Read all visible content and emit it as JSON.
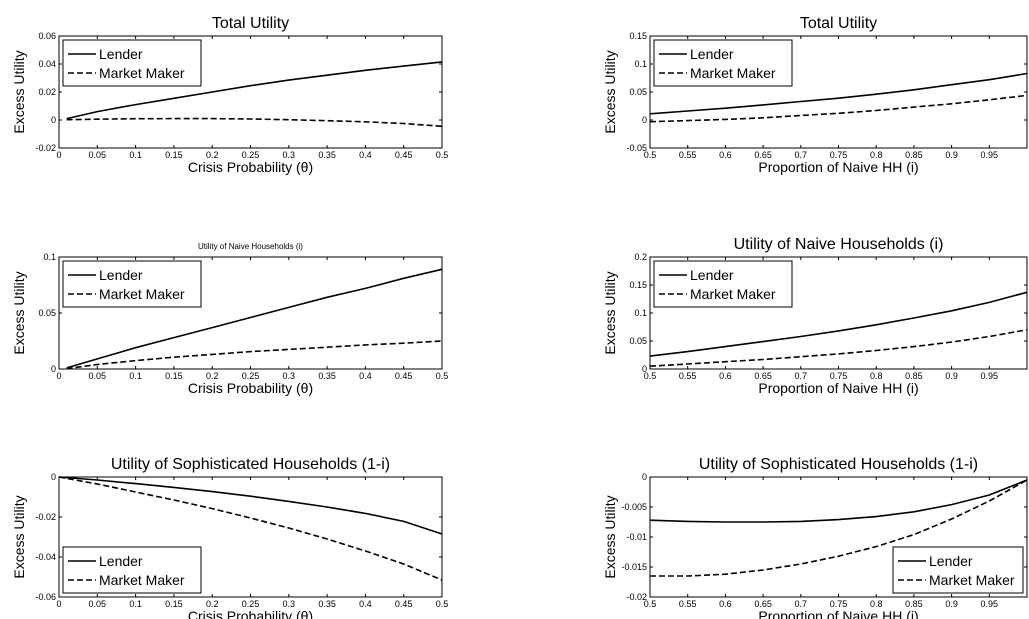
{
  "chart_data": [
    {
      "type": "line",
      "title": "Total Utility",
      "xlabel": "Crisis Probability (θ)",
      "ylabel": "Excess Utility",
      "xlim": [
        0,
        0.5
      ],
      "ylim": [
        -0.02,
        0.06
      ],
      "xticks": [
        "0",
        "0.05",
        "0.1",
        "0.15",
        "0.2",
        "0.25",
        "0.3",
        "0.35",
        "0.4",
        "0.45",
        "0.5"
      ],
      "yticks": [
        "-0.02",
        "0",
        "0.02",
        "0.04",
        "0.06"
      ],
      "legend_position": "top-left",
      "grid": false,
      "series": [
        {
          "name": "Lender",
          "style": "solid",
          "x": [
            0.01,
            0.05,
            0.1,
            0.15,
            0.2,
            0.25,
            0.3,
            0.35,
            0.4,
            0.45,
            0.5
          ],
          "y": [
            0.001,
            0.006,
            0.011,
            0.0155,
            0.02,
            0.0245,
            0.0285,
            0.032,
            0.0355,
            0.0385,
            0.0415
          ]
        },
        {
          "name": "Market Maker",
          "style": "dashed",
          "x": [
            0.01,
            0.05,
            0.1,
            0.15,
            0.2,
            0.25,
            0.3,
            0.35,
            0.4,
            0.45,
            0.5
          ],
          "y": [
            0.0002,
            0.0006,
            0.0009,
            0.001,
            0.001,
            0.0007,
            0.0002,
            -0.0005,
            -0.0013,
            -0.0025,
            -0.0045
          ]
        }
      ]
    },
    {
      "type": "line",
      "title": "Total Utility",
      "xlabel": "Proportion of Naive HH (i)",
      "ylabel": "Excess Utility",
      "xlim": [
        0.5,
        1
      ],
      "ylim": [
        -0.05,
        0.15
      ],
      "xticks": [
        "0.5",
        "0.55",
        "0.6",
        "0.65",
        "0.7",
        "0.75",
        "0.8",
        "0.85",
        "0.9",
        "0.95"
      ],
      "yticks": [
        "-0.05",
        "0",
        "0.05",
        "0.1",
        "0.15"
      ],
      "legend_position": "top-left",
      "grid": false,
      "series": [
        {
          "name": "Lender",
          "style": "solid",
          "x": [
            0.5,
            0.55,
            0.6,
            0.65,
            0.7,
            0.75,
            0.8,
            0.85,
            0.9,
            0.95,
            1.0
          ],
          "y": [
            0.011,
            0.016,
            0.021,
            0.027,
            0.033,
            0.039,
            0.046,
            0.054,
            0.063,
            0.072,
            0.083
          ]
        },
        {
          "name": "Market Maker",
          "style": "dashed",
          "x": [
            0.5,
            0.55,
            0.6,
            0.65,
            0.7,
            0.75,
            0.8,
            0.85,
            0.9,
            0.95,
            1.0
          ],
          "y": [
            -0.003,
            -0.001,
            0.001,
            0.004,
            0.008,
            0.012,
            0.017,
            0.023,
            0.029,
            0.036,
            0.044
          ]
        }
      ]
    },
    {
      "type": "line",
      "title": "Utility of Naive Households (i)",
      "xlabel": "Crisis Probability (θ)",
      "ylabel": "Excess Utility",
      "xlim": [
        0,
        0.5
      ],
      "ylim": [
        0,
        0.1
      ],
      "xticks": [
        "0",
        "0.05",
        "0.1",
        "0.15",
        "0.2",
        "0.25",
        "0.3",
        "0.35",
        "0.4",
        "0.45",
        "0.5"
      ],
      "yticks": [
        "0",
        "0.05",
        "0.1"
      ],
      "legend_position": "top-left",
      "grid": false,
      "series": [
        {
          "name": "Lender",
          "style": "solid",
          "x": [
            0.01,
            0.05,
            0.1,
            0.15,
            0.2,
            0.25,
            0.3,
            0.35,
            0.4,
            0.45,
            0.5
          ],
          "y": [
            0.001,
            0.009,
            0.019,
            0.028,
            0.037,
            0.046,
            0.055,
            0.064,
            0.072,
            0.081,
            0.089
          ]
        },
        {
          "name": "Market Maker",
          "style": "dashed",
          "x": [
            0.01,
            0.05,
            0.1,
            0.15,
            0.2,
            0.25,
            0.3,
            0.35,
            0.4,
            0.45,
            0.5
          ],
          "y": [
            0.0003,
            0.004,
            0.0075,
            0.0105,
            0.013,
            0.0155,
            0.0175,
            0.0195,
            0.0215,
            0.023,
            0.025
          ]
        }
      ]
    },
    {
      "type": "line",
      "title": "Utility of Naive Households (i)",
      "xlabel": "Proportion of Naive HH (i)",
      "ylabel": "Excess Utility",
      "xlim": [
        0.5,
        1
      ],
      "ylim": [
        0,
        0.2
      ],
      "xticks": [
        "0.5",
        "0.55",
        "0.6",
        "0.65",
        "0.7",
        "0.75",
        "0.8",
        "0.85",
        "0.9",
        "0.95"
      ],
      "yticks": [
        "0",
        "0.05",
        "0.1",
        "0.15",
        "0.2"
      ],
      "legend_position": "top-left",
      "grid": false,
      "series": [
        {
          "name": "Lender",
          "style": "solid",
          "x": [
            0.5,
            0.55,
            0.6,
            0.65,
            0.7,
            0.75,
            0.8,
            0.85,
            0.9,
            0.95,
            1.0
          ],
          "y": [
            0.023,
            0.031,
            0.04,
            0.049,
            0.058,
            0.068,
            0.079,
            0.091,
            0.104,
            0.119,
            0.137
          ]
        },
        {
          "name": "Market Maker",
          "style": "dashed",
          "x": [
            0.5,
            0.55,
            0.6,
            0.65,
            0.7,
            0.75,
            0.8,
            0.85,
            0.9,
            0.95,
            1.0
          ],
          "y": [
            0.005,
            0.009,
            0.013,
            0.017,
            0.022,
            0.027,
            0.033,
            0.04,
            0.048,
            0.058,
            0.07
          ]
        }
      ]
    },
    {
      "type": "line",
      "title": "Utility of Sophisticated Households (1-i)",
      "xlabel": "Crisis Probability (θ)",
      "ylabel": "Excess Utility",
      "xlim": [
        0,
        0.5
      ],
      "ylim": [
        -0.06,
        0
      ],
      "xticks": [
        "0",
        "0.05",
        "0.1",
        "0.15",
        "0.2",
        "0.25",
        "0.3",
        "0.35",
        "0.4",
        "0.45",
        "0.5"
      ],
      "yticks": [
        "-0.06",
        "-0.04",
        "-0.02",
        "0"
      ],
      "legend_position": "bottom-left",
      "grid": false,
      "series": [
        {
          "name": "Lender",
          "style": "solid",
          "x": [
            0.0,
            0.05,
            0.1,
            0.15,
            0.2,
            0.25,
            0.3,
            0.35,
            0.4,
            0.45,
            0.5
          ],
          "y": [
            0.0,
            -0.0015,
            -0.0033,
            -0.0052,
            -0.0073,
            -0.0096,
            -0.0122,
            -0.015,
            -0.0182,
            -0.0222,
            -0.0285
          ]
        },
        {
          "name": "Market Maker",
          "style": "dashed",
          "x": [
            0.0,
            0.05,
            0.1,
            0.15,
            0.2,
            0.25,
            0.3,
            0.35,
            0.4,
            0.45,
            0.5
          ],
          "y": [
            0.0,
            -0.0035,
            -0.0075,
            -0.0115,
            -0.0158,
            -0.0205,
            -0.0255,
            -0.031,
            -0.037,
            -0.0435,
            -0.0515
          ]
        }
      ]
    },
    {
      "type": "line",
      "title": "Utility of Sophisticated Households (1-i)",
      "xlabel": "Proportion of Naive HH (i)",
      "ylabel": "Excess Utility",
      "xlim": [
        0.5,
        1
      ],
      "ylim": [
        -0.02,
        0
      ],
      "xticks": [
        "0.5",
        "0.55",
        "0.6",
        "0.65",
        "0.7",
        "0.75",
        "0.8",
        "0.85",
        "0.9",
        "0.95"
      ],
      "yticks": [
        "-0.02",
        "-0.015",
        "-0.01",
        "-0.005",
        "0"
      ],
      "legend_position": "bottom-right",
      "grid": false,
      "series": [
        {
          "name": "Lender",
          "style": "solid",
          "x": [
            0.5,
            0.55,
            0.6,
            0.65,
            0.7,
            0.75,
            0.8,
            0.85,
            0.9,
            0.95,
            1.0
          ],
          "y": [
            -0.0072,
            -0.0074,
            -0.0075,
            -0.0075,
            -0.0074,
            -0.0071,
            -0.0066,
            -0.0058,
            -0.0046,
            -0.003,
            -0.0005
          ]
        },
        {
          "name": "Market Maker",
          "style": "dashed",
          "x": [
            0.5,
            0.55,
            0.6,
            0.65,
            0.7,
            0.75,
            0.8,
            0.85,
            0.9,
            0.95,
            1.0
          ],
          "y": [
            -0.0165,
            -0.0165,
            -0.0162,
            -0.0155,
            -0.0145,
            -0.0132,
            -0.0116,
            -0.0096,
            -0.007,
            -0.004,
            -0.0005
          ]
        }
      ]
    }
  ]
}
